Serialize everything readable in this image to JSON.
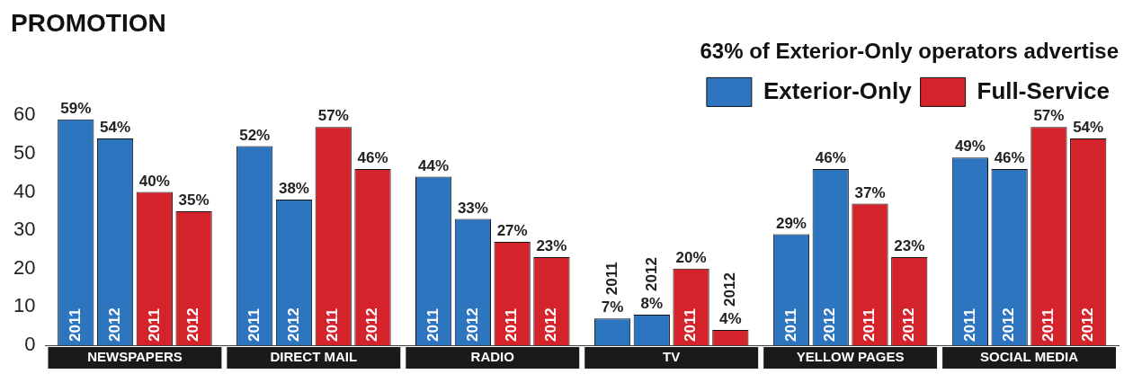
{
  "chart_data": {
    "type": "bar",
    "title": "PROMOTION",
    "subtitle": "63% of Exterior-Only operators advertise",
    "categories": [
      "NEWSPAPERS",
      "DIRECT MAIL",
      "RADIO",
      "TV",
      "YELLOW PAGES",
      "SOCIAL MEDIA"
    ],
    "series": [
      {
        "name": "Exterior-Only",
        "color": "#2e75c0",
        "values": [
          59,
          52,
          44,
          7,
          29,
          49
        ],
        "value_labels": [
          "59%",
          "52%",
          "44%",
          "7%",
          "29%",
          "49%"
        ]
      },
      {
        "color": "#2e75c0",
        "values": [
          54,
          38,
          33,
          8,
          46,
          46
        ],
        "value_labels": [
          "54%",
          "38%",
          "33%",
          "8%",
          "46%",
          "46%"
        ]
      },
      {
        "name": "Full-Service",
        "color": "#d4232b",
        "values": [
          40,
          57,
          27,
          20,
          37,
          57
        ],
        "value_labels": [
          "40%",
          "57%",
          "27%",
          "20%",
          "37%",
          "57%"
        ]
      },
      {
        "color": "#d4232b",
        "values": [
          35,
          46,
          23,
          4,
          23,
          54
        ],
        "value_labels": [
          "35%",
          "46%",
          "23%",
          "4%",
          "23%",
          "54%"
        ]
      }
    ],
    "annotations": [
      "2011",
      "2012",
      "2011",
      "2012",
      "2011",
      "2012",
      "2011",
      "2012",
      "2011",
      "2012",
      "2011",
      "2012",
      "2011",
      "2012",
      "2011",
      "2012",
      "2011",
      "2012",
      "2011",
      "2012",
      "2011",
      "2012",
      "2011",
      "2012"
    ],
    "ylim": [
      0,
      60
    ],
    "yticks": [
      0,
      10,
      20,
      30,
      40,
      50,
      60
    ],
    "grid": false,
    "legend": "top right"
  }
}
